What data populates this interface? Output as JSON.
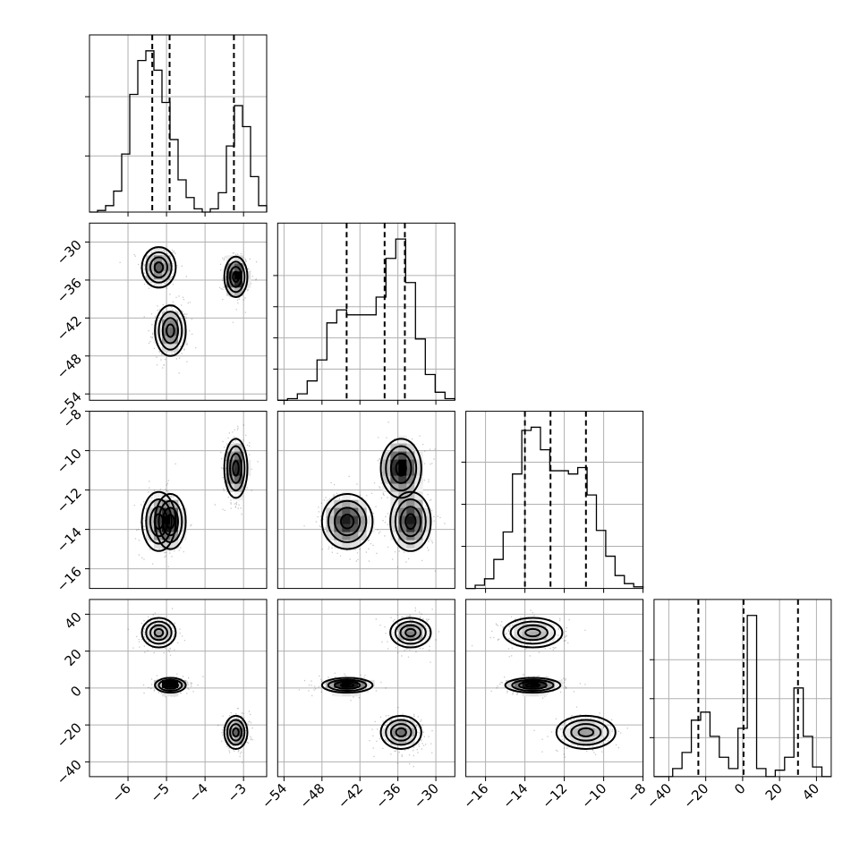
{
  "chart_data": {
    "type": "corner",
    "parameters": [
      {
        "range": [
          -7,
          -2.4
        ],
        "ticks": [
          -6,
          -5,
          -4,
          -3
        ],
        "tick_labels": [
          "−6",
          "−5",
          "−4",
          "−3"
        ],
        "quantiles": [
          -5.37,
          -4.92,
          -3.25
        ],
        "hist": [
          0,
          0.01,
          0.04,
          0.13,
          0.36,
          0.73,
          0.94,
          1.0,
          0.88,
          0.68,
          0.45,
          0.2,
          0.09,
          0.02,
          0.0,
          0.02,
          0.12,
          0.41,
          0.66,
          0.53,
          0.22,
          0.04
        ],
        "hist_yticks_frac": [
          0.36,
          0.74
        ]
      },
      {
        "range": [
          -55,
          -27
        ],
        "ticks": [
          -54,
          -48,
          -42,
          -36,
          -30
        ],
        "tick_labels": [
          "−54",
          "−48",
          "−42",
          "−36",
          "−30"
        ],
        "quantiles": [
          -44.1,
          -38.1,
          -34.9
        ],
        "hist": [
          0,
          0.01,
          0.04,
          0.12,
          0.25,
          0.48,
          0.56,
          0.53,
          0.53,
          0.53,
          0.64,
          0.88,
          1.0,
          0.73,
          0.38,
          0.16,
          0.05,
          0.01
        ],
        "hist_yticks_frac": [
          0.2,
          0.4,
          0.6,
          0.8
        ]
      },
      {
        "range": [
          -17,
          -8
        ],
        "ticks": [
          -16,
          -14,
          -12,
          -10,
          -8
        ],
        "tick_labels": [
          "−16",
          "−14",
          "−12",
          "−10",
          "−8"
        ],
        "quantiles": [
          -14.0,
          -12.7,
          -10.9
        ],
        "hist": [
          0,
          0.02,
          0.06,
          0.18,
          0.35,
          0.71,
          0.98,
          1.0,
          0.86,
          0.73,
          0.73,
          0.71,
          0.75,
          0.58,
          0.36,
          0.2,
          0.08,
          0.03,
          0.01
        ],
        "hist_yticks_frac": [
          0.27,
          0.54,
          0.81
        ]
      },
      {
        "range": [
          -48,
          48
        ],
        "ticks": [
          -40,
          -20,
          0,
          20,
          40
        ],
        "tick_labels": [
          "−40",
          "−20",
          "0",
          "20",
          "40"
        ],
        "quantiles": [
          -24,
          0.5,
          30
        ],
        "hist": [
          0,
          0.0,
          0.05,
          0.15,
          0.35,
          0.4,
          0.25,
          0.12,
          0.05,
          0.3,
          1.0,
          0.05,
          0.0,
          0.04,
          0.12,
          0.55,
          0.25,
          0.06,
          0.0
        ],
        "hist_yticks_frac": [
          0.25,
          0.5,
          0.75
        ]
      }
    ],
    "modes": [
      {
        "center": [
          -5.2,
          -34.0,
          -13.6,
          30.0
        ],
        "sd": [
          0.22,
          1.6,
          0.75,
          4.0
        ],
        "weight": 0.3
      },
      {
        "center": [
          -4.9,
          -44.0,
          -13.6,
          1.5
        ],
        "sd": [
          0.2,
          2.0,
          0.7,
          2.0
        ],
        "weight": 0.35
      },
      {
        "center": [
          -3.2,
          -35.5,
          -10.9,
          -24.0
        ],
        "sd": [
          0.15,
          1.6,
          0.75,
          4.5
        ],
        "weight": 0.35
      }
    ]
  }
}
